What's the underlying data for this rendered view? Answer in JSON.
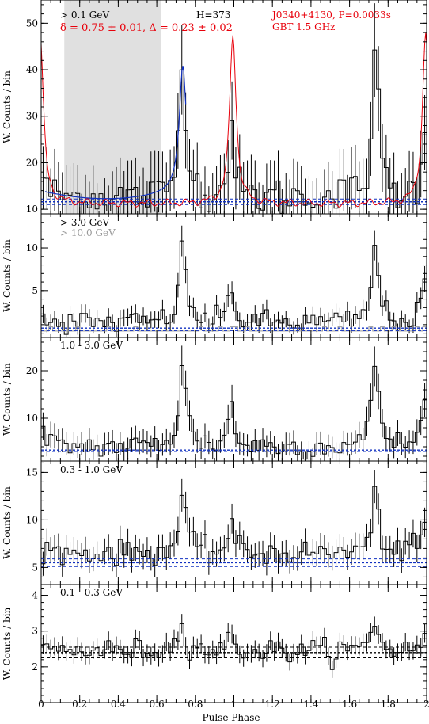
{
  "figure": {
    "xlabel": "Pulse Phase",
    "xlim": [
      0,
      2
    ],
    "xticks": [
      0,
      0.2,
      0.4,
      0.6,
      0.8,
      1,
      1.2,
      1.4,
      1.6,
      1.8,
      2
    ],
    "xtick_labels": [
      "0",
      "0.2",
      "0.4",
      "0.6",
      "0.8",
      "1",
      "1.2",
      "1.4",
      "1.6",
      "1.8",
      "2"
    ],
    "shared_ylabel": "W. Counts / bin"
  },
  "chart_data": [
    {
      "type": "line",
      "panel": "> 0.1 GeV",
      "band_label": "> 0.1 GeV",
      "h_label": "H=373",
      "fit_label": "δ = 0.75 ± 0.01, Δ = 0.23 ± 0.02",
      "radio_label_1": "J0340+4130, P=0.0033s",
      "radio_label_2": "GBT 1.5 GHz",
      "ylabel": "W. Counts / bin",
      "ylim": [
        9,
        55
      ],
      "yticks": [
        10,
        20,
        30,
        40,
        50
      ],
      "ytick_labels": [
        "10",
        "20",
        "30",
        "40",
        "50"
      ],
      "shaded_phase": [
        0.12,
        0.62
      ],
      "background_levels": [
        11.0,
        11.6,
        12.2
      ],
      "peaks": [
        {
          "phase": 0.735,
          "value": 42
        },
        {
          "phase": 0.985,
          "value": 29
        }
      ],
      "baseline": 12.5,
      "radio_profile": {
        "peak_phase": 0.995,
        "peak_value": 49,
        "base": 12.5,
        "color": "#e8000b"
      },
      "fit_curve": {
        "from": 0.02,
        "to": 0.75,
        "color": "#1030c0"
      },
      "colors": {
        "hist": "#000000",
        "bg_lines": "#1030c0",
        "shade": "#e0e0e0"
      }
    },
    {
      "type": "line",
      "panel": "> 3.0 GeV",
      "band_label": "> 3.0 GeV",
      "band_label_2": "> 10.0 GeV",
      "ylabel": "W. Counts / bin",
      "ylim": [
        -0.5,
        14
      ],
      "yticks": [
        5,
        10
      ],
      "ytick_labels": [
        "5",
        "10"
      ],
      "background_levels": [
        0.3,
        0.6
      ],
      "peaks": [
        {
          "phase": 0.735,
          "value": 10
        },
        {
          "phase": 0.985,
          "value": 6
        }
      ],
      "baseline": 1.2,
      "colors": {
        "hist": "#000000",
        "bg_lines": "#1030c0",
        "hist2": "#999999"
      }
    },
    {
      "type": "line",
      "panel": "1.0 - 3.0 GeV",
      "band_label": "1.0 - 3.0 GeV",
      "ylabel": "W. Counts / bin",
      "ylim": [
        1,
        27
      ],
      "yticks": [
        10,
        20
      ],
      "ytick_labels": [
        "10",
        "20"
      ],
      "background_levels": [
        3.0,
        3.3
      ],
      "peaks": [
        {
          "phase": 0.735,
          "value": 22
        },
        {
          "phase": 0.985,
          "value": 14
        }
      ],
      "baseline": 4,
      "colors": {
        "hist": "#000000",
        "bg_lines": "#1030c0"
      }
    },
    {
      "type": "line",
      "panel": "0.3 - 1.0 GeV",
      "band_label": "0.3 - 1.0 GeV",
      "ylabel": "W. Counts / bin",
      "ylim": [
        3.2,
        16.2
      ],
      "yticks": [
        5,
        10,
        15
      ],
      "ytick_labels": [
        "5",
        "10",
        "15"
      ],
      "background_levels": [
        5.1,
        5.5,
        5.9
      ],
      "peaks": [
        {
          "phase": 0.735,
          "value": 12.5
        },
        {
          "phase": 0.985,
          "value": 10
        }
      ],
      "baseline": 6.5,
      "colors": {
        "hist": "#000000",
        "bg_lines": "#1030c0"
      }
    },
    {
      "type": "line",
      "panel": "0.1 - 0.3 GeV",
      "band_label": "0.1 - 0.3 GeV",
      "ylabel": "W. Counts / bin",
      "ylim": [
        1,
        4.3
      ],
      "yticks": [
        2,
        3,
        4
      ],
      "ytick_labels": [
        "2",
        "3",
        "4"
      ],
      "background_levels": [
        2.25,
        2.4,
        2.55
      ],
      "peaks": [
        {
          "phase": 0.73,
          "value": 3.3
        },
        {
          "phase": 0.985,
          "value": 2.9
        }
      ],
      "baseline": 2.45,
      "colors": {
        "hist": "#000000",
        "bg_lines": "#000000"
      }
    }
  ]
}
